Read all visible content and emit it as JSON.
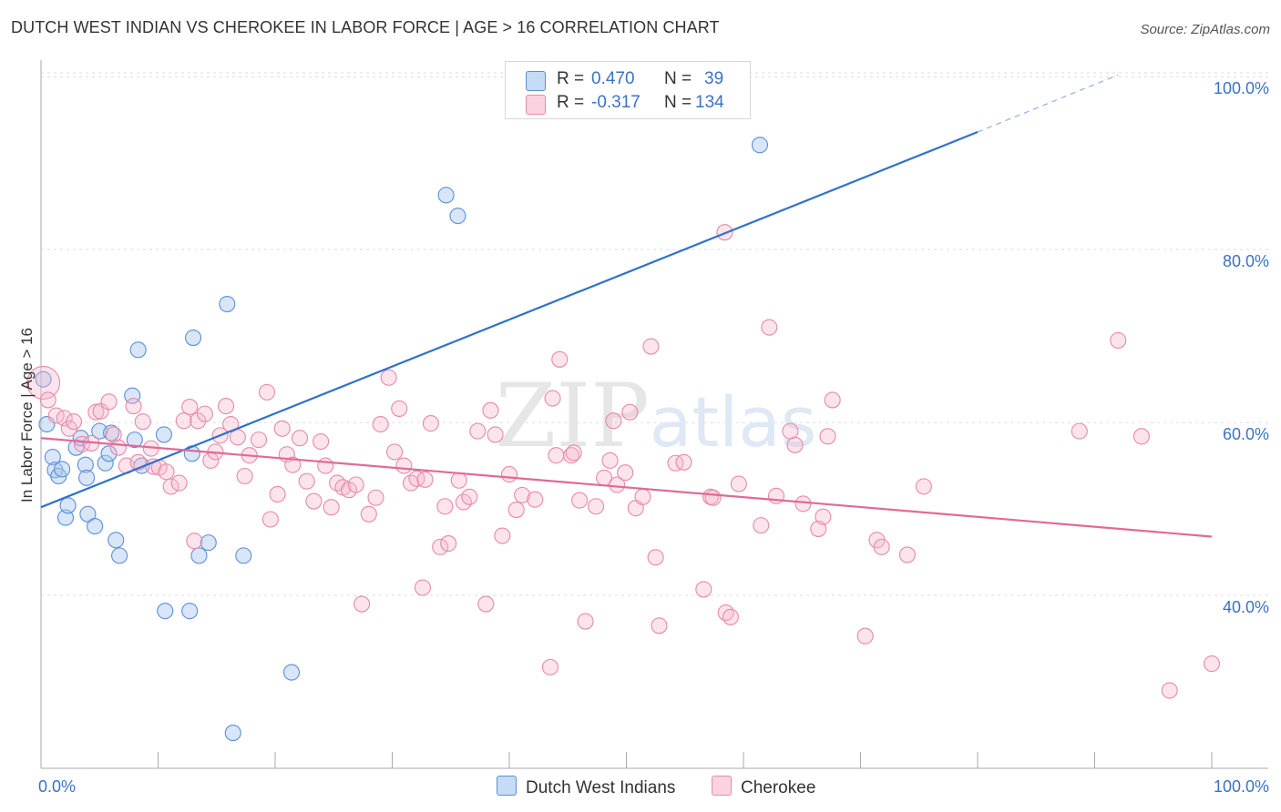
{
  "title": "DUTCH WEST INDIAN VS CHEROKEE IN LABOR FORCE | AGE > 16 CORRELATION CHART",
  "source": "Source: ZipAtlas.com",
  "watermark": "ZIPatlas",
  "legend": {
    "rows": [
      {
        "r_label": "R =",
        "r_value": "0.470",
        "n_label": "N =",
        "n_value": "39",
        "color": "#a9c8f0"
      },
      {
        "r_label": "R =",
        "r_value": "-0.317",
        "n_label": "N =",
        "n_value": "134",
        "color": "#f5b8cc"
      }
    ]
  },
  "bottom_legend": [
    {
      "label": "Dutch West Indians",
      "color": "#a9c8f0"
    },
    {
      "label": "Cherokee",
      "color": "#f5b8cc"
    }
  ],
  "chart_data": {
    "type": "scatter",
    "ylabel": "In Labor Force | Age > 16",
    "xlabel": "",
    "x_tick_labels": [
      "0.0%",
      "100.0%"
    ],
    "y_tick_labels": [
      "40.0%",
      "60.0%",
      "80.0%",
      "100.0%"
    ],
    "y_ticks": [
      40,
      60,
      80,
      100
    ],
    "xlim": [
      0,
      100
    ],
    "ylim": [
      20,
      101.5
    ],
    "series": [
      {
        "name": "Dutch West Indians",
        "color": "#a9c8f0",
        "stroke": "#5b8fd6",
        "trend": {
          "x0": 0,
          "y0": 50.2,
          "x1": 80,
          "y1": 93.6,
          "dash_to_x": 92,
          "dash_to_y": 100.2,
          "color": "#2f72cc"
        },
        "points": [
          [
            0.2,
            65
          ],
          [
            0.5,
            59.8
          ],
          [
            1,
            56
          ],
          [
            1.2,
            54.5
          ],
          [
            1.5,
            53.8
          ],
          [
            1.8,
            54.6
          ],
          [
            2.1,
            49
          ],
          [
            2.3,
            50.4
          ],
          [
            3,
            57.1
          ],
          [
            3.4,
            58.2
          ],
          [
            3.8,
            55.1
          ],
          [
            3.9,
            53.6
          ],
          [
            4,
            49.4
          ],
          [
            4.6,
            48
          ],
          [
            5,
            59
          ],
          [
            5.5,
            55.3
          ],
          [
            5.8,
            56.4
          ],
          [
            6,
            58.8
          ],
          [
            6.4,
            46.4
          ],
          [
            6.7,
            44.6
          ],
          [
            7.8,
            63.1
          ],
          [
            8,
            58
          ],
          [
            8.3,
            68.4
          ],
          [
            8.6,
            55
          ],
          [
            10.5,
            58.6
          ],
          [
            10.6,
            38.2
          ],
          [
            12.7,
            38.2
          ],
          [
            12.9,
            56.4
          ],
          [
            13,
            69.8
          ],
          [
            13.5,
            44.6
          ],
          [
            14.3,
            46.1
          ],
          [
            15.9,
            73.7
          ],
          [
            16.4,
            24.1
          ],
          [
            17.3,
            44.6
          ],
          [
            21.4,
            31.1
          ],
          [
            34.6,
            86.3
          ],
          [
            35.6,
            83.9
          ],
          [
            61.4,
            92.1
          ]
        ]
      },
      {
        "name": "Cherokee",
        "color": "#f5b8cc",
        "stroke": "#e889a9",
        "trend": {
          "x0": 0,
          "y0": 58.2,
          "x1": 100,
          "y1": 46.8,
          "color": "#e06a96"
        },
        "points": [
          [
            0.2,
            64.6
          ],
          [
            0.6,
            62.6
          ],
          [
            1.3,
            60.8
          ],
          [
            2,
            60.5
          ],
          [
            2.4,
            59.3
          ],
          [
            2.8,
            60.1
          ],
          [
            3.5,
            57.5
          ],
          [
            4.3,
            57.6
          ],
          [
            4.7,
            61.2
          ],
          [
            5.1,
            61.3
          ],
          [
            5.8,
            62.4
          ],
          [
            6.2,
            58.6
          ],
          [
            6.6,
            57.1
          ],
          [
            7.3,
            55
          ],
          [
            7.9,
            61.9
          ],
          [
            8.3,
            55.4
          ],
          [
            8.7,
            60.1
          ],
          [
            9.4,
            57
          ],
          [
            9.6,
            54.9
          ],
          [
            10.1,
            54.8
          ],
          [
            10.7,
            54.3
          ],
          [
            11.1,
            52.6
          ],
          [
            11.8,
            53
          ],
          [
            12.2,
            60.2
          ],
          [
            12.7,
            61.8
          ],
          [
            13.1,
            46.3
          ],
          [
            13.4,
            60.2
          ],
          [
            14,
            61
          ],
          [
            14.5,
            55.6
          ],
          [
            14.9,
            56.6
          ],
          [
            15.3,
            58.5
          ],
          [
            15.8,
            61.9
          ],
          [
            16.2,
            59.8
          ],
          [
            16.8,
            58.3
          ],
          [
            17.4,
            53.8
          ],
          [
            17.8,
            56.2
          ],
          [
            18.6,
            58
          ],
          [
            19.3,
            63.5
          ],
          [
            19.6,
            48.8
          ],
          [
            20.2,
            51.7
          ],
          [
            20.6,
            59.3
          ],
          [
            21,
            56.3
          ],
          [
            21.5,
            55.1
          ],
          [
            22.1,
            58.2
          ],
          [
            22.7,
            53.2
          ],
          [
            23.3,
            50.9
          ],
          [
            23.9,
            57.8
          ],
          [
            24.3,
            55
          ],
          [
            24.8,
            50.2
          ],
          [
            25.3,
            53
          ],
          [
            25.8,
            52.5
          ],
          [
            26.3,
            52.2
          ],
          [
            26.9,
            52.8
          ],
          [
            27.4,
            39
          ],
          [
            28,
            49.4
          ],
          [
            28.6,
            51.3
          ],
          [
            29,
            59.8
          ],
          [
            29.7,
            65.2
          ],
          [
            30.2,
            56.6
          ],
          [
            30.6,
            61.6
          ],
          [
            31,
            55
          ],
          [
            31.6,
            53
          ],
          [
            32.1,
            53.5
          ],
          [
            32.6,
            40.9
          ],
          [
            32.8,
            53.4
          ],
          [
            33.3,
            59.9
          ],
          [
            34.1,
            45.6
          ],
          [
            34.5,
            50.3
          ],
          [
            34.8,
            46
          ],
          [
            35.7,
            53.3
          ],
          [
            36.1,
            50.8
          ],
          [
            36.6,
            51.4
          ],
          [
            37.3,
            59
          ],
          [
            38,
            39
          ],
          [
            38.4,
            61.4
          ],
          [
            38.8,
            58.6
          ],
          [
            39.4,
            46.9
          ],
          [
            40,
            54
          ],
          [
            40.6,
            49.9
          ],
          [
            41.1,
            51.6
          ],
          [
            42.2,
            51.1
          ],
          [
            43.5,
            31.7
          ],
          [
            43.7,
            62.8
          ],
          [
            44,
            56.2
          ],
          [
            44.3,
            67.3
          ],
          [
            45.3,
            56.2
          ],
          [
            45.5,
            56.5
          ],
          [
            46,
            51
          ],
          [
            46.5,
            37
          ],
          [
            47.4,
            50.3
          ],
          [
            48.1,
            53.6
          ],
          [
            48.6,
            55.6
          ],
          [
            48.9,
            60.2
          ],
          [
            49.2,
            52.8
          ],
          [
            49.9,
            54.2
          ],
          [
            50.3,
            61.2
          ],
          [
            50.8,
            50.1
          ],
          [
            51.4,
            51.4
          ],
          [
            52.1,
            68.8
          ],
          [
            52.5,
            44.4
          ],
          [
            52.8,
            36.5
          ],
          [
            54.2,
            55.3
          ],
          [
            54.9,
            55.4
          ],
          [
            56.6,
            40.7
          ],
          [
            57.2,
            51.4
          ],
          [
            57.4,
            51.3
          ],
          [
            58.4,
            82
          ],
          [
            58.5,
            38
          ],
          [
            58.9,
            37.5
          ],
          [
            59.6,
            52.9
          ],
          [
            61.5,
            48.1
          ],
          [
            62.2,
            71
          ],
          [
            62.8,
            51.5
          ],
          [
            64,
            59
          ],
          [
            64.4,
            57.4
          ],
          [
            65.1,
            50.6
          ],
          [
            66.4,
            47.7
          ],
          [
            66.8,
            49.1
          ],
          [
            67.2,
            58.4
          ],
          [
            67.6,
            62.6
          ],
          [
            70.4,
            35.3
          ],
          [
            71.4,
            46.4
          ],
          [
            71.8,
            45.6
          ],
          [
            74,
            44.7
          ],
          [
            75.4,
            52.6
          ],
          [
            88.7,
            59
          ],
          [
            92,
            69.5
          ],
          [
            94,
            58.4
          ],
          [
            96.4,
            29
          ],
          [
            100,
            32.1
          ]
        ]
      }
    ]
  }
}
